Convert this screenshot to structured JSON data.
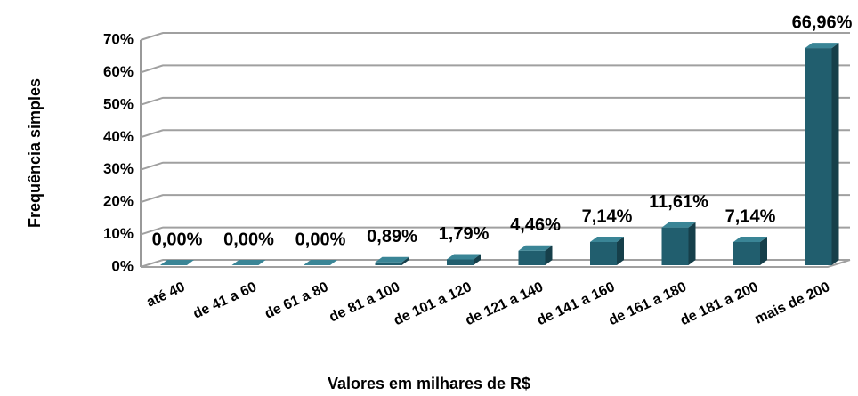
{
  "chart_data": {
    "type": "bar3d",
    "xlabel": "Valores em milhares de R$",
    "ylabel": "Frequência simples",
    "categories": [
      "até 40",
      "de 41 a 60",
      "de 61 a 80",
      "de 81 a 100",
      "de 101 a 120",
      "de 121 a 140",
      "de 141 a 160",
      "de 161 a 180",
      "de 181 a 200",
      "mais de 200"
    ],
    "values": [
      0,
      0,
      0,
      0.89,
      1.79,
      4.46,
      7.14,
      11.61,
      7.14,
      66.96
    ],
    "value_labels": [
      "0,00%",
      "0,00%",
      "0,00%",
      "0,89%",
      "1,79%",
      "4,46%",
      "7,14%",
      "11,61%",
      "7,14%",
      "66,96%"
    ],
    "color": "#215e6e",
    "ylim": [
      0,
      70
    ],
    "yticks": [
      {
        "value": 0,
        "label": "0%"
      },
      {
        "value": 10,
        "label": "10%"
      },
      {
        "value": 20,
        "label": "20%"
      },
      {
        "value": 30,
        "label": "30%"
      },
      {
        "value": 40,
        "label": "40%"
      },
      {
        "value": 50,
        "label": "50%"
      },
      {
        "value": 60,
        "label": "60%"
      },
      {
        "value": 70,
        "label": "70%"
      }
    ],
    "grid": true
  }
}
